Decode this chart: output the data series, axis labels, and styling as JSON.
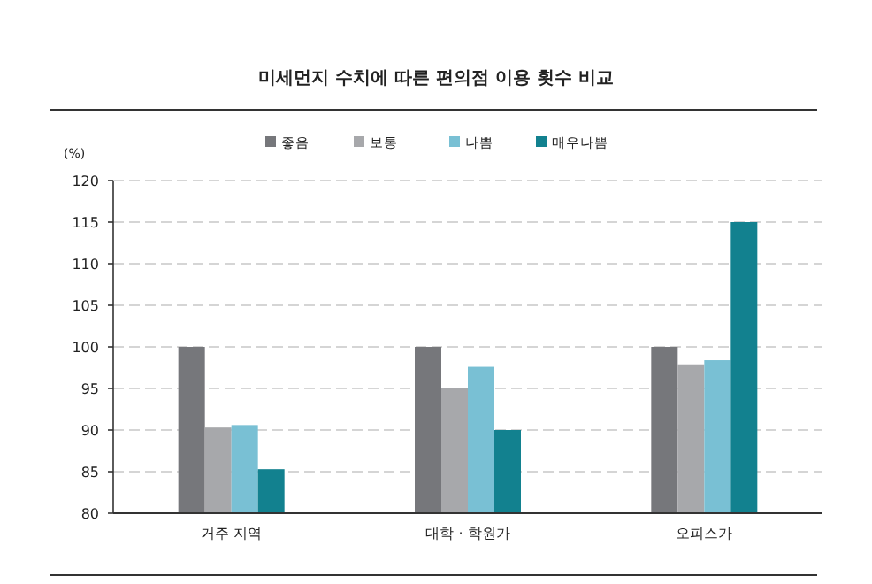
{
  "chart_data": {
    "type": "bar",
    "title": "미세먼지 수치에 따른 편의점 이용 횟수 비교",
    "ylabel": "(%)",
    "categories": [
      "거주 지역",
      "대학 · 학원가",
      "오피스가"
    ],
    "series": [
      {
        "name": "좋음",
        "color": "#76777b",
        "values": [
          100,
          100,
          100
        ]
      },
      {
        "name": "보통",
        "color": "#a7a8ab",
        "values": [
          90.3,
          95,
          97.9
        ]
      },
      {
        "name": "나쁨",
        "color": "#79c0d4",
        "values": [
          90.6,
          97.6,
          98.4
        ]
      },
      {
        "name": "매우나쁨",
        "color": "#12818f",
        "values": [
          85.3,
          90,
          115
        ]
      }
    ],
    "ylim": [
      80,
      120
    ],
    "yticks": [
      80,
      85,
      90,
      95,
      100,
      105,
      110,
      115,
      120
    ],
    "grid": "y",
    "legend": "top"
  }
}
